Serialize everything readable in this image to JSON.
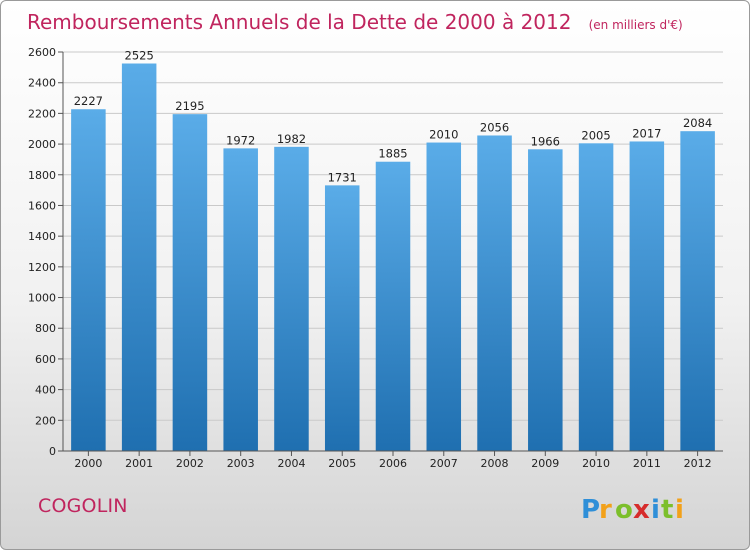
{
  "chart_data": {
    "type": "bar",
    "title": "Remboursements Annuels de la Dette de 2000 à 2012",
    "unit_note": "(en milliers d'€)",
    "categories": [
      "2000",
      "2001",
      "2002",
      "2003",
      "2004",
      "2005",
      "2006",
      "2007",
      "2008",
      "2009",
      "2010",
      "2011",
      "2012"
    ],
    "values": [
      2227,
      2525,
      2195,
      1972,
      1982,
      1731,
      1885,
      2010,
      2056,
      1966,
      2005,
      2017,
      2084
    ],
    "ylim": [
      0,
      2600
    ],
    "yticks": [
      0,
      200,
      400,
      600,
      800,
      1000,
      1200,
      1400,
      1600,
      1800,
      2000,
      2200,
      2400,
      2600
    ],
    "grid": true,
    "colors": {
      "bar_top": "#5aace8",
      "bar_bottom": "#1f6fb0",
      "title": "#c0255e"
    }
  },
  "footer": {
    "commune": "COGOLIN",
    "brand": "Proxiti"
  }
}
